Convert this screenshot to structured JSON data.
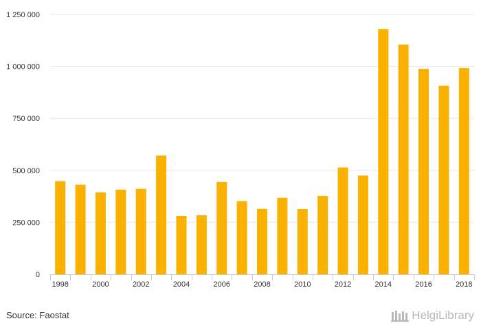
{
  "chart_data": {
    "type": "bar",
    "categories": [
      "1998",
      "1999",
      "2000",
      "2001",
      "2002",
      "2003",
      "2004",
      "2005",
      "2006",
      "2007",
      "2008",
      "2009",
      "2010",
      "2011",
      "2012",
      "2013",
      "2014",
      "2015",
      "2016",
      "2017",
      "2018"
    ],
    "values": [
      448000,
      431000,
      394000,
      407000,
      411000,
      571000,
      281000,
      284000,
      444000,
      352000,
      315000,
      368000,
      314000,
      377000,
      514000,
      475000,
      1180000,
      1105000,
      988000,
      907000,
      992000
    ],
    "x_tick_labels": [
      "1998",
      "",
      "2000",
      "",
      "2002",
      "",
      "2004",
      "",
      "2006",
      "",
      "2008",
      "",
      "2010",
      "",
      "2012",
      "",
      "2014",
      "",
      "2016",
      "",
      "2018"
    ],
    "y_ticks": [
      0,
      250000,
      500000,
      750000,
      1000000,
      1250000
    ],
    "y_tick_labels": [
      "0",
      "250 000",
      "500 000",
      "750 000",
      "1 000 000",
      "1 250 000"
    ],
    "ylim": [
      0,
      1250000
    ],
    "title": "",
    "xlabel": "",
    "ylabel": "",
    "grid": true,
    "bar_color": "#FBB100"
  },
  "footer": {
    "source": "Source: Faostat",
    "brand": "HelgiLibrary"
  }
}
